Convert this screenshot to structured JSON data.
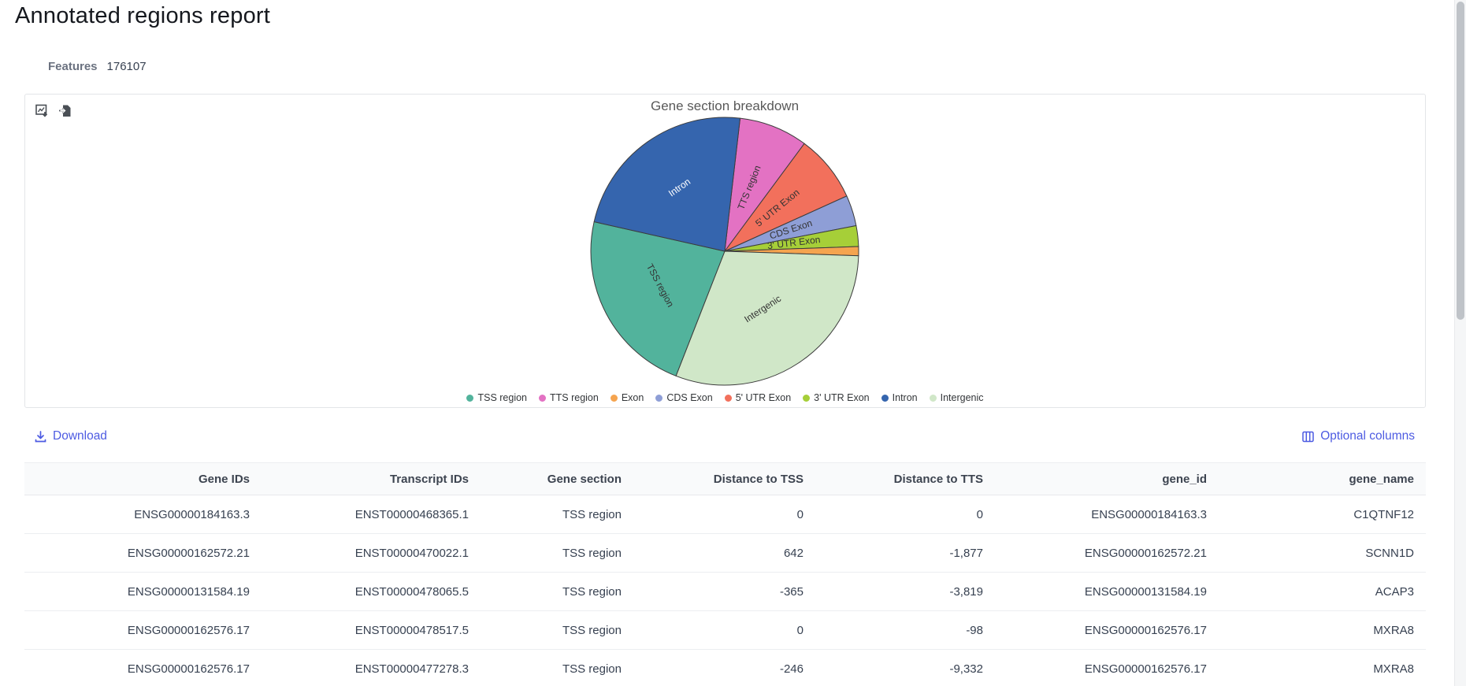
{
  "page": {
    "title": "Annotated regions report"
  },
  "summary": {
    "features_label": "Features",
    "features_value": "176107"
  },
  "chart_data": {
    "type": "pie",
    "title": "Gene section breakdown",
    "legend_position": "bottom",
    "total_features": 176107,
    "slices": [
      {
        "label": "TSS region",
        "percent": 22.6,
        "color": "#52b39c"
      },
      {
        "label": "TTS region",
        "percent": 8.3,
        "color": "#e372c3"
      },
      {
        "label": "Exon",
        "percent": 1.1,
        "color": "#f5a44f"
      },
      {
        "label": "CDS Exon",
        "percent": 3.7,
        "color": "#8e9ed6"
      },
      {
        "label": "5' UTR Exon",
        "percent": 8.1,
        "color": "#f2705c"
      },
      {
        "label": "3' UTR Exon",
        "percent": 2.5,
        "color": "#a6cf38"
      },
      {
        "label": "Intron",
        "percent": 23.3,
        "color": "#3565ae"
      },
      {
        "label": "Intergenic",
        "percent": 30.4,
        "color": "#d0e7c8"
      }
    ],
    "draw": {
      "start_angle_deg": 6.6,
      "clockwise_order": [
        "TTS region",
        "5' UTR Exon",
        "CDS Exon",
        "3' UTR Exon",
        "Exon",
        "Intergenic",
        "TSS region",
        "Intron"
      ]
    }
  },
  "actions": {
    "download": "Download",
    "optional_columns": "Optional columns"
  },
  "table": {
    "columns": [
      "Gene IDs",
      "Transcript IDs",
      "Gene section",
      "Distance to TSS",
      "Distance to TTS",
      "gene_id",
      "gene_name"
    ],
    "rows": [
      [
        "ENSG00000184163.3",
        "ENST00000468365.1",
        "TSS region",
        "0",
        "0",
        "ENSG00000184163.3",
        "C1QTNF12"
      ],
      [
        "ENSG00000162572.21",
        "ENST00000470022.1",
        "TSS region",
        "642",
        "-1,877",
        "ENSG00000162572.21",
        "SCNN1D"
      ],
      [
        "ENSG00000131584.19",
        "ENST00000478065.5",
        "TSS region",
        "-365",
        "-3,819",
        "ENSG00000131584.19",
        "ACAP3"
      ],
      [
        "ENSG00000162576.17",
        "ENST00000478517.5",
        "TSS region",
        "0",
        "-98",
        "ENSG00000162576.17",
        "MXRA8"
      ],
      [
        "ENSG00000162576.17",
        "ENST00000477278.3",
        "TSS region",
        "-246",
        "-9,332",
        "ENSG00000162576.17",
        "MXRA8"
      ]
    ]
  },
  "colors": {
    "link": "#4d5be2",
    "card_border": "#e3e5e8",
    "slice_stroke": "#3c3c3c"
  }
}
